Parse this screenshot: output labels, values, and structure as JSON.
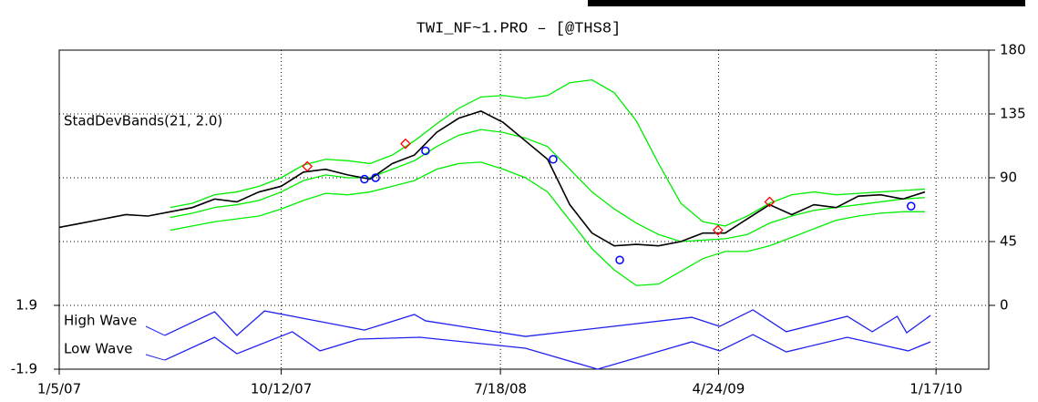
{
  "chart_data": {
    "type": "line",
    "title": "TWI_NF~1.PRO  –  [@THS8]",
    "xlim": [
      0,
      167.5
    ],
    "xticks": [
      {
        "value": 0,
        "label": "1/5/07"
      },
      {
        "value": 40,
        "label": "10/12/07"
      },
      {
        "value": 79.5,
        "label": "7/18/08"
      },
      {
        "value": 118.8,
        "label": "4/24/09"
      },
      {
        "value": 158,
        "label": "1/17/10"
      }
    ],
    "ylim": [
      0,
      180
    ],
    "yticks": [
      0,
      45,
      90,
      135,
      180
    ],
    "grid": true,
    "price": {
      "color": "#000000",
      "x": [
        0,
        4,
        8,
        12,
        16,
        20,
        24,
        28,
        32,
        36,
        40,
        44,
        48,
        52,
        56,
        60,
        64,
        68,
        72,
        76,
        80,
        84,
        88,
        92,
        96,
        100,
        104,
        108,
        112,
        116,
        120,
        124,
        128,
        132,
        136,
        140,
        144,
        148,
        152,
        156
      ],
      "values": [
        55,
        58,
        61,
        64,
        63,
        66,
        69,
        75,
        73,
        80,
        84,
        94,
        96,
        92,
        89,
        100,
        106,
        122,
        132,
        137,
        129,
        116,
        103,
        71,
        51,
        42,
        43,
        42,
        45,
        51,
        51,
        61,
        71,
        64,
        71,
        69,
        77,
        78,
        75,
        80
      ]
    },
    "bands": {
      "label": "StadDevBands(21, 2.0)",
      "color": "#00ee00",
      "x": [
        20,
        24,
        28,
        32,
        36,
        40,
        44,
        48,
        52,
        56,
        60,
        64,
        68,
        72,
        76,
        80,
        84,
        88,
        92,
        96,
        100,
        104,
        108,
        112,
        116,
        120,
        124,
        128,
        132,
        136,
        140,
        144,
        148,
        152,
        156
      ],
      "upper": [
        69,
        72,
        78,
        80,
        84,
        90,
        99,
        103,
        102,
        100,
        106,
        116,
        128,
        139,
        147,
        148,
        146,
        148,
        157,
        159,
        150,
        130,
        100,
        72,
        59,
        56,
        63,
        72,
        78,
        80,
        78,
        79,
        80,
        81,
        82
      ],
      "middle": [
        62,
        65,
        69,
        71,
        74,
        80,
        88,
        92,
        90,
        90,
        96,
        102,
        112,
        120,
        124,
        122,
        118,
        112,
        96,
        80,
        68,
        58,
        50,
        45,
        46,
        47,
        50,
        58,
        63,
        67,
        69,
        71,
        73,
        75,
        76
      ],
      "lower": [
        53,
        56,
        59,
        61,
        63,
        68,
        74,
        79,
        78,
        80,
        84,
        88,
        96,
        100,
        101,
        96,
        90,
        80,
        60,
        40,
        25,
        14,
        15,
        24,
        33,
        38,
        38,
        42,
        48,
        54,
        60,
        63,
        65,
        66,
        66
      ]
    },
    "markers": [
      {
        "shape": "diamond",
        "color": "#ff0000",
        "x": [
          44.7,
          62.4,
          118.7,
          128
        ],
        "values": [
          98,
          114,
          53,
          73
        ]
      },
      {
        "shape": "circle",
        "color": "#0000ff",
        "x": [
          55,
          57,
          66,
          89,
          101,
          153.5
        ],
        "values": [
          89,
          90,
          109,
          103,
          32,
          70
        ]
      }
    ],
    "wave": {
      "ylim": [
        -1.9,
        1.9
      ],
      "yticks": [
        -1.9,
        1.9
      ],
      "series": [
        {
          "name": "High Wave",
          "color": "#2020ee",
          "x": [
            19,
            28,
            32,
            37,
            55,
            64,
            66,
            84,
            114,
            119,
            125,
            131,
            142,
            146.5,
            151,
            152.7,
            157
          ],
          "values": [
            0.11,
            1.52,
            0.11,
            1.57,
            0.43,
            1.36,
            0.98,
            0.05,
            1.19,
            0.65,
            1.63,
            0.33,
            1.25,
            0.33,
            1.25,
            0.27,
            1.3
          ]
        },
        {
          "name": "Low Wave",
          "color": "#2020ee",
          "x": [
            19,
            28,
            32,
            42,
            47,
            54,
            65,
            84,
            97,
            114,
            119,
            125,
            131,
            142,
            153,
            157
          ],
          "values": [
            -1.36,
            0,
            -0.98,
            0.33,
            -0.81,
            -0.11,
            0,
            -0.65,
            -1.9,
            -0.27,
            -0.81,
            0.16,
            -0.87,
            0,
            -0.81,
            -0.27
          ]
        }
      ]
    }
  }
}
